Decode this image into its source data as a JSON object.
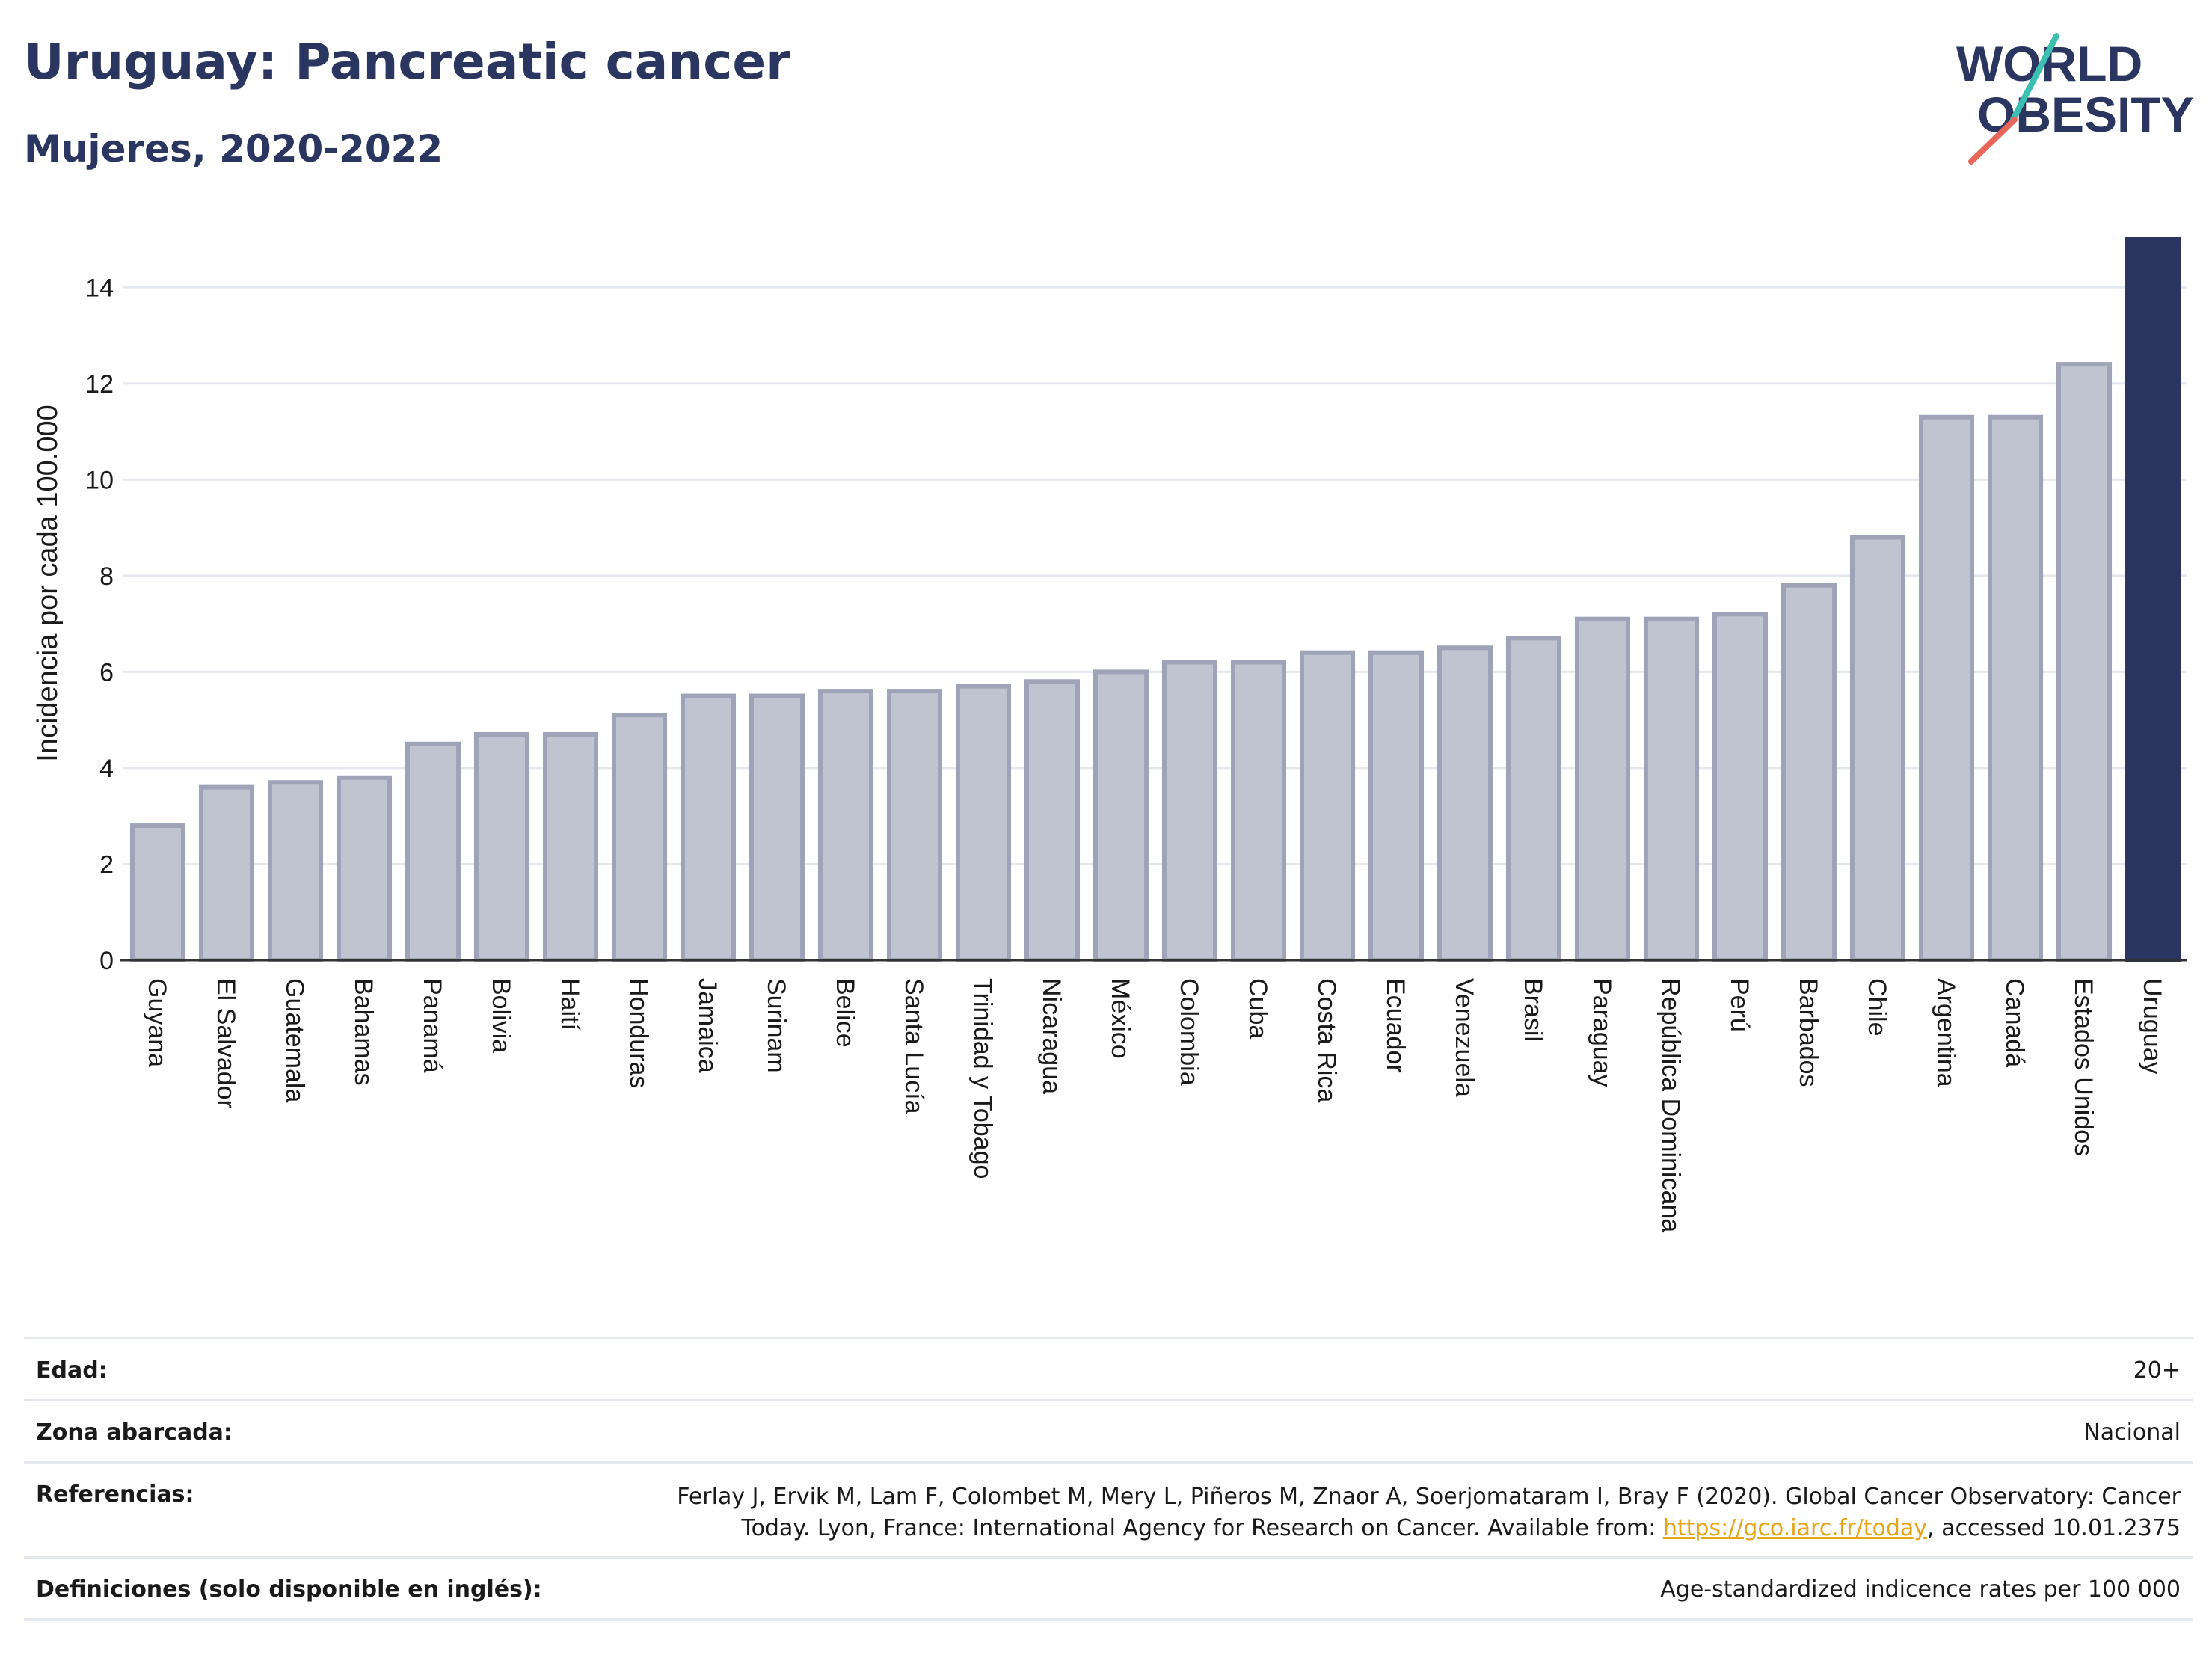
{
  "header": {
    "title": "Uruguay: Pancreatic cancer",
    "subtitle": "Mujeres, 2020-2022"
  },
  "logo": {
    "line1": "WORLD",
    "line2": "OBESITY"
  },
  "colors": {
    "highlight": "#2a3560",
    "bar_fill": "#c0c3d0",
    "bar_stroke": "#9ea3b8",
    "link": "#e8a317",
    "logo_teal": "#3bbfb0",
    "logo_red": "#e8675a"
  },
  "chart_data": {
    "type": "bar",
    "ylabel": "Incidencia por cada 100.000",
    "ylim": [
      0,
      15
    ],
    "yticks": [
      0,
      2,
      4,
      6,
      8,
      10,
      12,
      14
    ],
    "grid": true,
    "highlight": "Uruguay",
    "categories": [
      "Guyana",
      "El Salvador",
      "Guatemala",
      "Bahamas",
      "Panamá",
      "Bolivia",
      "Haití",
      "Honduras",
      "Jamaica",
      "Surinam",
      "Belice",
      "Santa Lucía",
      "Trinidad y Tobago",
      "Nicaragua",
      "México",
      "Colombia",
      "Cuba",
      "Costa Rica",
      "Ecuador",
      "Venezuela",
      "Brasil",
      "Paraguay",
      "República Dominicana",
      "Perú",
      "Barbados",
      "Chile",
      "Argentina",
      "Canadá",
      "Estados Unidos",
      "Uruguay"
    ],
    "values": [
      2.8,
      3.6,
      3.7,
      3.8,
      4.5,
      4.7,
      4.7,
      5.1,
      5.5,
      5.5,
      5.6,
      5.6,
      5.7,
      5.8,
      6.0,
      6.2,
      6.2,
      6.4,
      6.4,
      6.5,
      6.7,
      7.1,
      7.1,
      7.2,
      7.8,
      8.8,
      11.3,
      11.3,
      12.4,
      15.0
    ]
  },
  "info": {
    "edad_label": "Edad:",
    "edad_value": "20+",
    "zona_label": "Zona abarcada:",
    "zona_value": "Nacional",
    "ref_label": "Referencias:",
    "ref_line1": "Ferlay J, Ervik M, Lam F, Colombet M, Mery L, Piñeros M, Znaor A, Soerjomataram I, Bray F (2020). Global Cancer Observatory: Cancer",
    "ref_line2_pre": "Today. Lyon, France: International Agency for Research on Cancer. Available from: ",
    "ref_link": "https://gco.iarc.fr/today",
    "ref_line2_post": ", accessed 10.01.2375",
    "def_label": "Definiciones (solo disponible en inglés):",
    "def_value": "Age-standardized indicence rates per 100 000"
  }
}
